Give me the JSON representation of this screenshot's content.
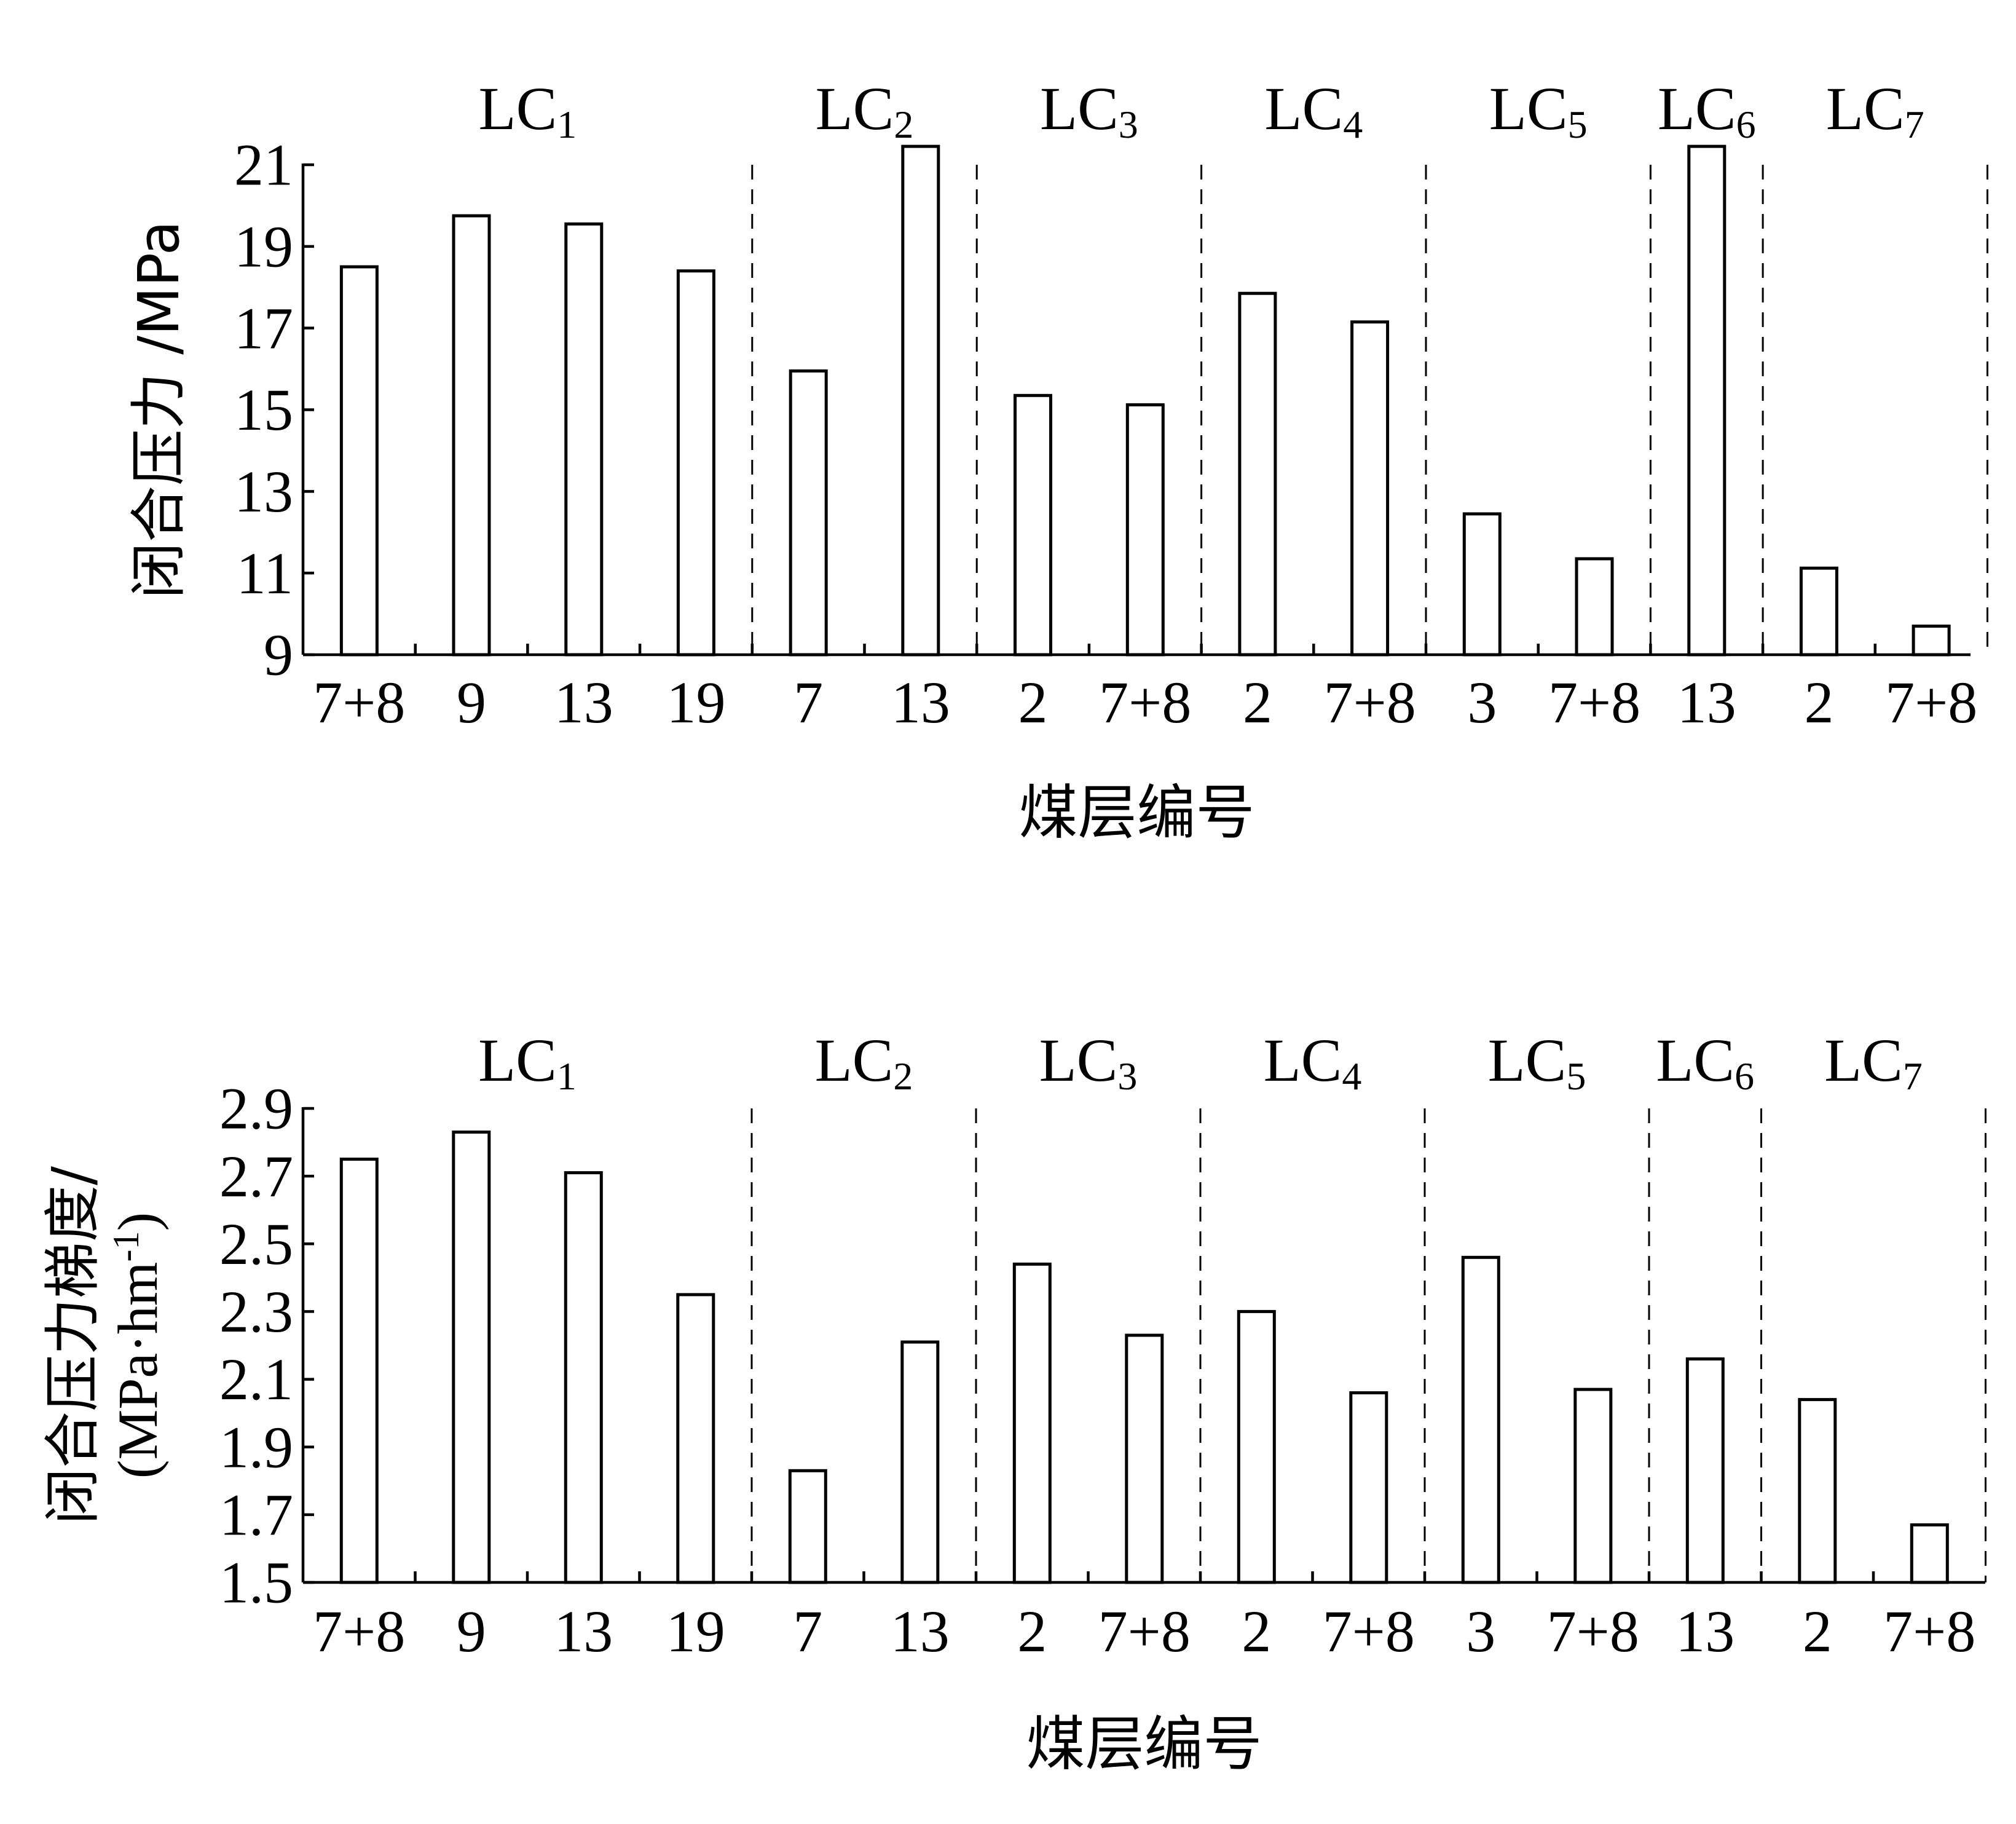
{
  "chart_data": [
    {
      "type": "bar",
      "xlabel": "煤层编号",
      "ylabel": "闭合压力 /MPa",
      "ylim": [
        9,
        21
      ],
      "yticks": [
        "9",
        "11",
        "13",
        "15",
        "17",
        "19",
        "21"
      ],
      "categories": [
        "7+8",
        "9",
        "13",
        "19",
        "7",
        "13",
        "2",
        "7+8",
        "2",
        "7+8",
        "3",
        "7+8",
        "13",
        "2",
        "7+8"
      ],
      "values": [
        18.5,
        19.75,
        19.55,
        18.4,
        15.95,
        21.45,
        15.35,
        15.12,
        17.85,
        17.15,
        12.45,
        11.35,
        21.45,
        11.12,
        9.7
      ],
      "groups": [
        {
          "prefix": "LC",
          "sub": "1",
          "count": 4
        },
        {
          "prefix": "LC",
          "sub": "2",
          "count": 2
        },
        {
          "prefix": "LC",
          "sub": "3",
          "count": 2
        },
        {
          "prefix": "LC",
          "sub": "4",
          "count": 2
        },
        {
          "prefix": "LC",
          "sub": "5",
          "count": 2
        },
        {
          "prefix": "LC",
          "sub": "6",
          "count": 1
        },
        {
          "prefix": "LC",
          "sub": "7",
          "count": 2
        }
      ],
      "grid": false
    },
    {
      "type": "bar",
      "xlabel": "煤层编号",
      "ylabel_lines": [
        "闭合压力梯度/",
        "(MPa·hm",
        "-1",
        ")"
      ],
      "ylim": [
        1.5,
        2.9
      ],
      "yticks": [
        "1.5",
        "1.7",
        "1.9",
        "2.1",
        "2.3",
        "2.5",
        "2.7",
        "2.9"
      ],
      "categories": [
        "7+8",
        "9",
        "13",
        "19",
        "7",
        "13",
        "2",
        "7+8",
        "2",
        "7+8",
        "3",
        "7+8",
        "13",
        "2",
        "7+8"
      ],
      "values": [
        2.75,
        2.83,
        2.71,
        2.35,
        1.83,
        2.21,
        2.44,
        2.23,
        2.3,
        2.06,
        2.46,
        2.07,
        2.16,
        2.04,
        1.67
      ],
      "groups": [
        {
          "prefix": "LC",
          "sub": "1",
          "count": 4
        },
        {
          "prefix": "LC",
          "sub": "2",
          "count": 2
        },
        {
          "prefix": "LC",
          "sub": "3",
          "count": 2
        },
        {
          "prefix": "LC",
          "sub": "4",
          "count": 2
        },
        {
          "prefix": "LC",
          "sub": "5",
          "count": 2
        },
        {
          "prefix": "LC",
          "sub": "6",
          "count": 1
        },
        {
          "prefix": "LC",
          "sub": "7",
          "count": 2
        }
      ],
      "grid": false
    }
  ]
}
